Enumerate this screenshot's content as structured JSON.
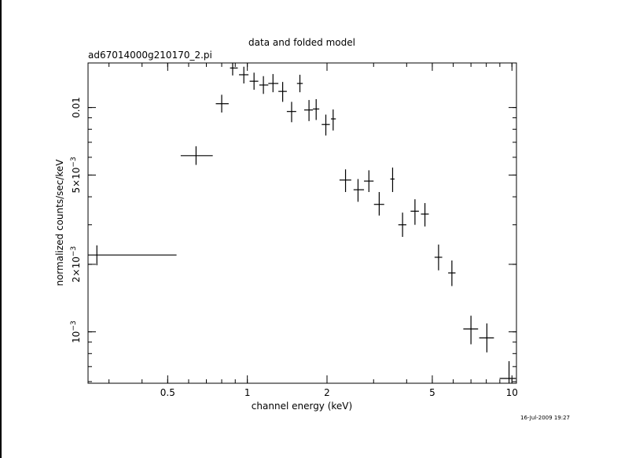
{
  "chart_data": {
    "type": "scatter",
    "title": "data and folded model",
    "subtitle": "ad67014000g210170_2.pi",
    "xlabel": "channel energy (keV)",
    "ylabel": "normalized counts/sec/keV",
    "x_scale": "log",
    "y_scale": "log",
    "xlim": [
      0.25,
      10.4
    ],
    "ylim": [
      0.00059,
      0.0158
    ],
    "x_ticks": [
      {
        "value": 0.5,
        "label": "0.5"
      },
      {
        "value": 1,
        "label": "1"
      },
      {
        "value": 2,
        "label": "2"
      },
      {
        "value": 5,
        "label": "5"
      },
      {
        "value": 10,
        "label": "10"
      }
    ],
    "y_ticks": [
      {
        "value": 0.001,
        "base": "10",
        "exp": "−3",
        "mant": ""
      },
      {
        "value": 0.002,
        "base": "10",
        "exp": "−3",
        "mant": "2×"
      },
      {
        "value": 0.005,
        "base": "10",
        "exp": "−3",
        "mant": "5×"
      },
      {
        "value": 0.01,
        "label": "0.01"
      }
    ],
    "grid": false,
    "points": [
      {
        "x": 0.27,
        "xlo": 0.25,
        "xhi": 0.54,
        "y": 0.0022,
        "ylo": 0.00198,
        "yhi": 0.00243
      },
      {
        "x": 0.64,
        "xlo": 0.56,
        "xhi": 0.74,
        "y": 0.0061,
        "ylo": 0.00555,
        "yhi": 0.00672
      },
      {
        "x": 0.8,
        "xlo": 0.76,
        "xhi": 0.85,
        "y": 0.0104,
        "ylo": 0.0095,
        "yhi": 0.0114
      },
      {
        "x": 0.88,
        "xlo": 0.86,
        "xhi": 0.92,
        "y": 0.015,
        "ylo": 0.0139,
        "yhi": 0.016
      },
      {
        "x": 0.97,
        "xlo": 0.93,
        "xhi": 1.01,
        "y": 0.014,
        "ylo": 0.0128,
        "yhi": 0.0152
      },
      {
        "x": 1.06,
        "xlo": 1.02,
        "xhi": 1.1,
        "y": 0.0131,
        "ylo": 0.012,
        "yhi": 0.0143
      },
      {
        "x": 1.15,
        "xlo": 1.11,
        "xhi": 1.2,
        "y": 0.0126,
        "ylo": 0.0115,
        "yhi": 0.0138
      },
      {
        "x": 1.25,
        "xlo": 1.2,
        "xhi": 1.31,
        "y": 0.0128,
        "ylo": 0.0117,
        "yhi": 0.0141
      },
      {
        "x": 1.36,
        "xlo": 1.31,
        "xhi": 1.41,
        "y": 0.0118,
        "ylo": 0.0106,
        "yhi": 0.013
      },
      {
        "x": 1.47,
        "xlo": 1.41,
        "xhi": 1.53,
        "y": 0.0096,
        "ylo": 0.0086,
        "yhi": 0.0106
      },
      {
        "x": 1.58,
        "xlo": 1.54,
        "xhi": 1.62,
        "y": 0.0128,
        "ylo": 0.0117,
        "yhi": 0.014
      },
      {
        "x": 1.71,
        "xlo": 1.64,
        "xhi": 1.77,
        "y": 0.00975,
        "ylo": 0.0087,
        "yhi": 0.0108
      },
      {
        "x": 1.82,
        "xlo": 1.77,
        "xhi": 1.87,
        "y": 0.00985,
        "ylo": 0.0088,
        "yhi": 0.0109
      },
      {
        "x": 1.98,
        "xlo": 1.91,
        "xhi": 2.05,
        "y": 0.0084,
        "ylo": 0.0075,
        "yhi": 0.0093
      },
      {
        "x": 2.11,
        "xlo": 2.07,
        "xhi": 2.16,
        "y": 0.0089,
        "ylo": 0.0079,
        "yhi": 0.0098
      },
      {
        "x": 2.35,
        "xlo": 2.23,
        "xhi": 2.47,
        "y": 0.00475,
        "ylo": 0.0042,
        "yhi": 0.0053
      },
      {
        "x": 2.62,
        "xlo": 2.52,
        "xhi": 2.76,
        "y": 0.0043,
        "ylo": 0.0038,
        "yhi": 0.0048
      },
      {
        "x": 2.88,
        "xlo": 2.76,
        "xhi": 3.0,
        "y": 0.0047,
        "ylo": 0.0042,
        "yhi": 0.00525
      },
      {
        "x": 3.15,
        "xlo": 3.01,
        "xhi": 3.29,
        "y": 0.0037,
        "ylo": 0.0033,
        "yhi": 0.0042
      },
      {
        "x": 3.54,
        "xlo": 3.47,
        "xhi": 3.6,
        "y": 0.0048,
        "ylo": 0.0042,
        "yhi": 0.0054
      },
      {
        "x": 3.86,
        "xlo": 3.72,
        "xhi": 3.99,
        "y": 0.003,
        "ylo": 0.00265,
        "yhi": 0.0034
      },
      {
        "x": 4.3,
        "xlo": 4.14,
        "xhi": 4.45,
        "y": 0.00345,
        "ylo": 0.003,
        "yhi": 0.0039
      },
      {
        "x": 4.69,
        "xlo": 4.53,
        "xhi": 4.85,
        "y": 0.00335,
        "ylo": 0.00295,
        "yhi": 0.00375
      },
      {
        "x": 5.28,
        "xlo": 5.1,
        "xhi": 5.45,
        "y": 0.00215,
        "ylo": 0.00188,
        "yhi": 0.00245
      },
      {
        "x": 5.93,
        "xlo": 5.74,
        "xhi": 6.12,
        "y": 0.00183,
        "ylo": 0.0016,
        "yhi": 0.00208
      },
      {
        "x": 7.0,
        "xlo": 6.55,
        "xhi": 7.45,
        "y": 0.00103,
        "ylo": 0.00088,
        "yhi": 0.00118
      },
      {
        "x": 8.04,
        "xlo": 7.52,
        "xhi": 8.55,
        "y": 0.00094,
        "ylo": 0.00081,
        "yhi": 0.00109
      },
      {
        "x": 9.75,
        "xlo": 8.98,
        "xhi": 10.35,
        "y": 0.00062,
        "ylo": 0.00052,
        "yhi": 0.00074
      }
    ]
  },
  "timestamp": "16-Jul-2009 19:27"
}
